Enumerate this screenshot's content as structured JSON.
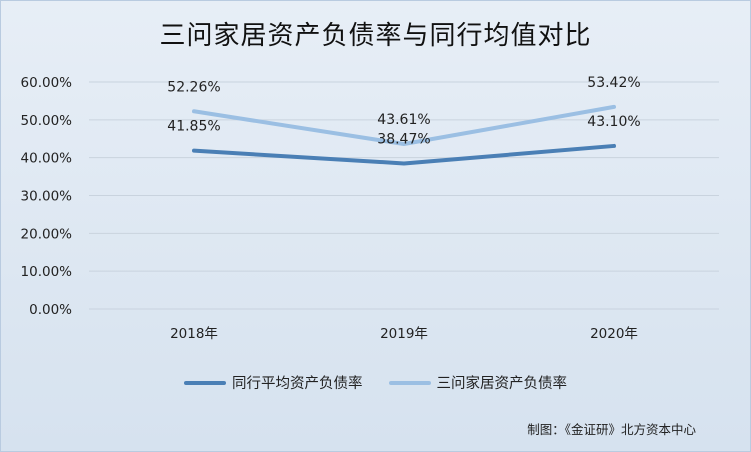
{
  "chart_data": {
    "type": "line",
    "title": "三问家居资产负债率与同行均值对比",
    "categories": [
      "2018年",
      "2019年",
      "2020年"
    ],
    "series": [
      {
        "name": "同行平均资产负债率",
        "values": [
          41.85,
          38.47,
          43.1
        ],
        "labels": [
          "41.85%",
          "38.47%",
          "43.10%"
        ],
        "color": "#4a7fb5"
      },
      {
        "name": "三问家居资产负债率",
        "values": [
          52.26,
          43.61,
          53.42
        ],
        "labels": [
          "52.26%",
          "43.61%",
          "53.42%"
        ],
        "color": "#9bbfe3"
      }
    ],
    "ylim": [
      0,
      60
    ],
    "yticks": [
      "0.00%",
      "10.00%",
      "20.00%",
      "30.00%",
      "40.00%",
      "50.00%",
      "60.00%"
    ],
    "grid": true,
    "legend_position": "bottom"
  },
  "source_note": "制图：《金证研》北方资本中心"
}
